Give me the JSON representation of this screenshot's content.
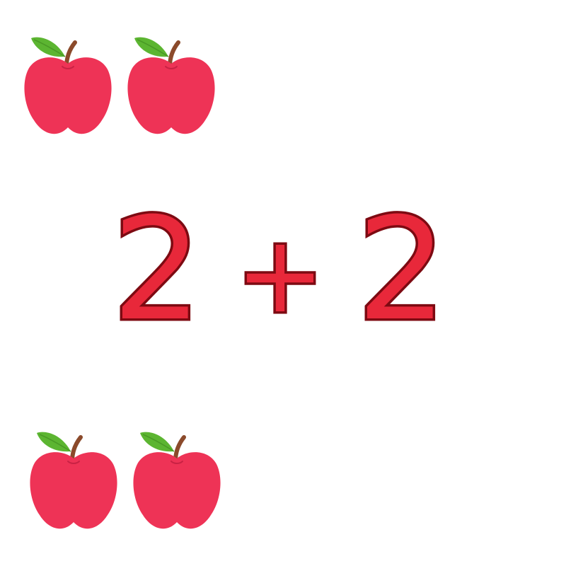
{
  "equation": {
    "left_operand": "2",
    "operator": "+",
    "right_operand": "2"
  },
  "groups": [
    {
      "name": "top-apples",
      "count": 2
    },
    {
      "name": "bottom-apples",
      "count": 2
    }
  ],
  "icons": {
    "apple": "apple-icon"
  },
  "colors": {
    "apple_body": "#ee3356",
    "apple_shade": "#d92a4c",
    "leaf": "#5cb531",
    "stem": "#8b4a2b",
    "digit_fill": "#e8283a",
    "digit_outline": "#7d0a12",
    "background": "#ffffff"
  }
}
